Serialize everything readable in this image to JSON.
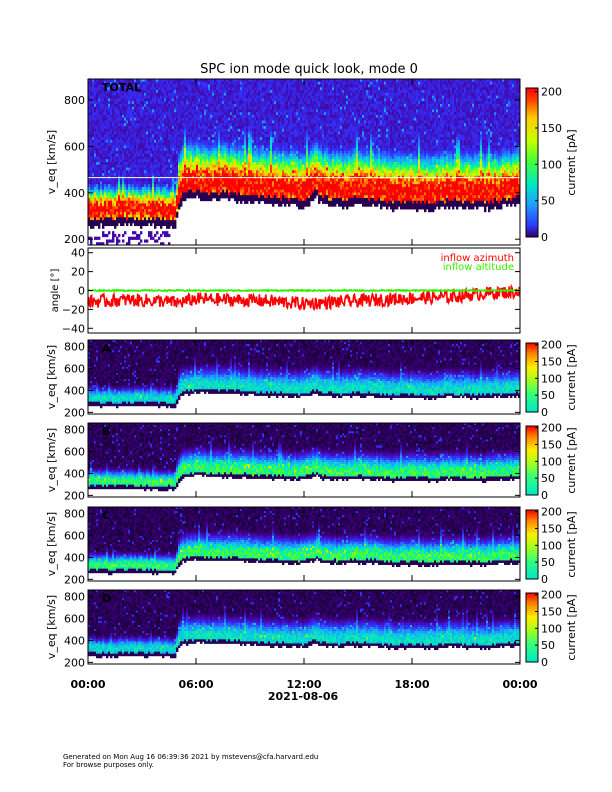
{
  "chart_data": {
    "type": "heatmap",
    "title": "SPC ion mode quick look, mode 0",
    "x_axis": {
      "tick_labels": [
        "00:00",
        "06:00",
        "12:00",
        "18:00",
        "00:00"
      ],
      "tick_hours": [
        0,
        6,
        12,
        18,
        24
      ],
      "range_hours": [
        0,
        24
      ],
      "date_label": "2021-08-06"
    },
    "colorbar": {
      "label": "current [pA]",
      "range": [
        0,
        205
      ],
      "ticks_main": [
        "200",
        "150",
        "100",
        "50",
        "0"
      ],
      "ticks_main_values": [
        200,
        150,
        100,
        50,
        0
      ],
      "ticks_small": [
        "200",
        "150",
        "100",
        "50",
        "0"
      ],
      "ticks_small_values": [
        200,
        150,
        100,
        50,
        0
      ]
    },
    "panels": [
      {
        "id": "total",
        "label": "TOTAL",
        "ylabel": "v_eq [km/s]",
        "y_range": [
          175,
          890
        ],
        "yticks": [
          "800",
          "600",
          "400",
          "200"
        ],
        "ytick_values": [
          800,
          600,
          400,
          200
        ],
        "intensity_scale": 1.0,
        "reference_line_kms": 465
      },
      {
        "id": "angle",
        "type": "line",
        "ylabel": "angle [°]",
        "y_range": [
          -45,
          45
        ],
        "yticks": [
          "40",
          "20",
          "0",
          "−20",
          "−40"
        ],
        "ytick_values": [
          40,
          20,
          0,
          -20,
          -40
        ],
        "series": [
          {
            "name": "inflow azimuth",
            "color": "#ff0000",
            "hours": [
              0,
              2,
              4,
              5,
              6,
              8,
              10,
              12,
              14,
              16,
              18,
              20,
              22,
              24
            ],
            "values": [
              -12,
              -10,
              -11,
              -13,
              -9,
              -10,
              -11,
              -14,
              -12,
              -10,
              -8,
              -7,
              -3,
              -1
            ]
          },
          {
            "name": "inflow altitude",
            "color": "#33ee00",
            "hours": [
              0,
              6,
              12,
              18,
              24
            ],
            "values": [
              0,
              0,
              0,
              0,
              0
            ]
          }
        ]
      },
      {
        "id": "A",
        "label": "A",
        "ylabel": "v_eq [km/s]",
        "y_range": [
          185,
          860
        ],
        "yticks": [
          "800",
          "600",
          "400",
          "200"
        ],
        "ytick_values": [
          800,
          600,
          400,
          200
        ],
        "intensity_scale": 0.45
      },
      {
        "id": "B",
        "label": "B",
        "ylabel": "v_eq [km/s]",
        "y_range": [
          185,
          860
        ],
        "yticks": [
          "800",
          "600",
          "400",
          "200"
        ],
        "ytick_values": [
          800,
          600,
          400,
          200
        ],
        "intensity_scale": 0.55
      },
      {
        "id": "C",
        "label": "C",
        "ylabel": "v_eq [km/s]",
        "y_range": [
          185,
          860
        ],
        "yticks": [
          "800",
          "600",
          "400",
          "200"
        ],
        "ytick_values": [
          800,
          600,
          400,
          200
        ],
        "intensity_scale": 0.55
      },
      {
        "id": "D",
        "label": "D",
        "ylabel": "v_eq [km/s]",
        "y_range": [
          185,
          860
        ],
        "yticks": [
          "800",
          "600",
          "400",
          "200"
        ],
        "ytick_values": [
          800,
          600,
          400,
          200
        ],
        "intensity_scale": 0.45
      }
    ],
    "core_speed_profile": {
      "hours": [
        0,
        1,
        2,
        3,
        4,
        4.8,
        5.2,
        6,
        7,
        8,
        9,
        10,
        11,
        12,
        12.7,
        13,
        14,
        15,
        16,
        17,
        18,
        19,
        20,
        21,
        22,
        23,
        24
      ],
      "speed_kms": [
        330,
        325,
        330,
        330,
        325,
        320,
        430,
        450,
        440,
        440,
        430,
        420,
        415,
        410,
        450,
        420,
        410,
        420,
        415,
        400,
        405,
        395,
        410,
        405,
        400,
        410,
        420
      ]
    }
  },
  "footer": {
    "line1": "Generated on Mon Aug 16 06:39:36 2021 by mstevens@cfa.harvard.edu",
    "line2": "For browse purposes only."
  }
}
